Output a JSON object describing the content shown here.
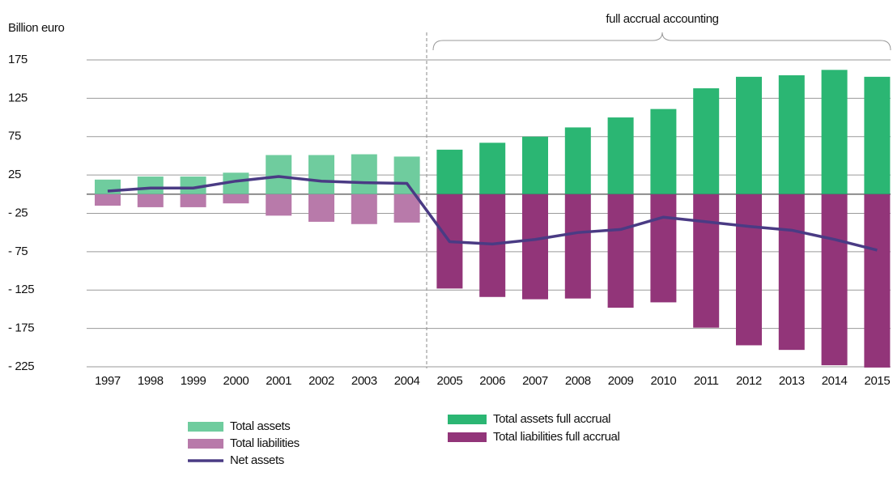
{
  "chart_data": {
    "type": "bar",
    "y_label": "Billion euro",
    "annotation": "full accrual accounting",
    "categories": [
      "1997",
      "1998",
      "1999",
      "2000",
      "2001",
      "2002",
      "2003",
      "2004",
      "2005",
      "2006",
      "2007",
      "2008",
      "2009",
      "2010",
      "2011",
      "2012",
      "2013",
      "2014",
      "2015"
    ],
    "series": [
      {
        "name": "Total assets",
        "type": "bar",
        "color": "#6fcc9e",
        "values": [
          19,
          23,
          23,
          28,
          51,
          51,
          52,
          49,
          null,
          null,
          null,
          null,
          null,
          null,
          null,
          null,
          null,
          null,
          null
        ]
      },
      {
        "name": "Total liabilities",
        "type": "bar",
        "color": "#b87aaa",
        "values": [
          -15,
          -17,
          -17,
          -12,
          -28,
          -36,
          -39,
          -37,
          null,
          null,
          null,
          null,
          null,
          null,
          null,
          null,
          null,
          null,
          null
        ]
      },
      {
        "name": "Total assets full accrual",
        "type": "bar",
        "color": "#2bb673",
        "values": [
          null,
          null,
          null,
          null,
          null,
          null,
          null,
          null,
          58,
          67,
          75,
          87,
          100,
          111,
          138,
          153,
          155,
          162,
          153
        ]
      },
      {
        "name": "Total liabilities full accrual",
        "type": "bar",
        "color": "#923579",
        "values": [
          null,
          null,
          null,
          null,
          null,
          null,
          null,
          null,
          -123,
          -134,
          -137,
          -136,
          -148,
          -141,
          -174,
          -197,
          -203,
          -223,
          -226
        ]
      },
      {
        "name": "Net assets",
        "type": "line",
        "color": "#4a3b84",
        "values": [
          4,
          8,
          8,
          17,
          23,
          17,
          15,
          14,
          -62,
          -65,
          -59,
          -50,
          -46,
          -30,
          -36,
          -42,
          -47,
          -59,
          -73
        ]
      }
    ],
    "ylim": [
      -225,
      175
    ],
    "yticks": [
      175,
      125,
      75,
      25,
      {
        "value": -25,
        "label": "- 25"
      },
      {
        "value": -75,
        "label": "- 75"
      },
      {
        "value": -125,
        "label": "- 125"
      },
      {
        "value": -175,
        "label": "- 175"
      },
      {
        "value": -225,
        "label": "- 225"
      }
    ],
    "grid": true
  }
}
